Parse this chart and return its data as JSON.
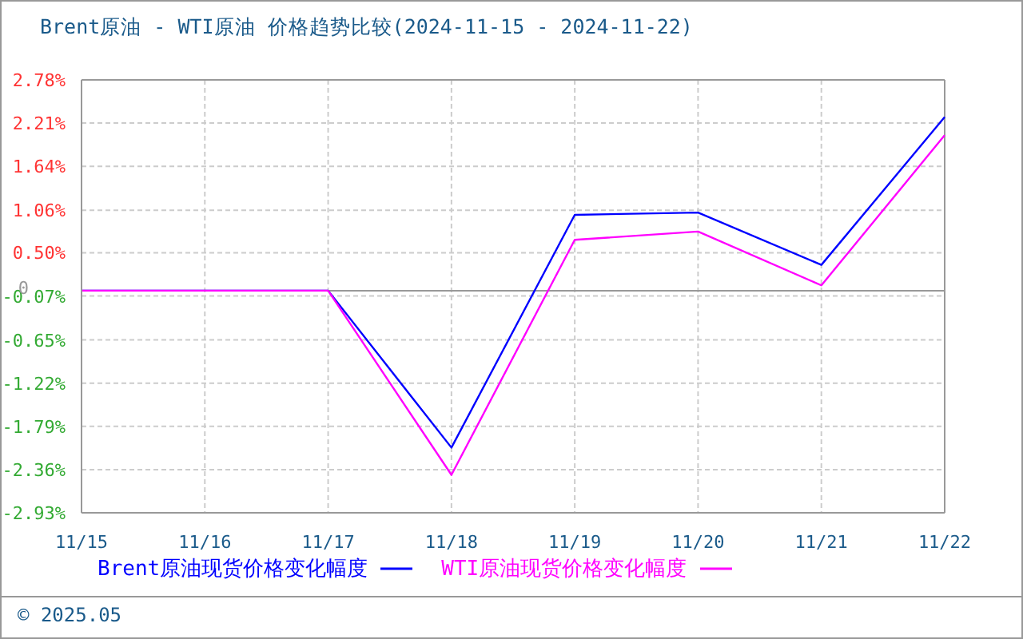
{
  "chart_data": {
    "type": "line",
    "title": "Brent原油 - WTI原油 价格趋势比较(2024-11-15 - 2024-11-22)",
    "categories": [
      "11/15",
      "11/16",
      "11/17",
      "11/18",
      "11/19",
      "11/20",
      "11/21",
      "11/22"
    ],
    "series": [
      {
        "name": "Brent原油现货价格变化幅度",
        "color": "#0000ff",
        "values": [
          0,
          0,
          0,
          -2.07,
          1.0,
          1.03,
          0.34,
          2.29
        ]
      },
      {
        "name": "WTI原油现货价格变化幅度",
        "color": "#ff00ff",
        "values": [
          0,
          0,
          0,
          -2.43,
          0.67,
          0.78,
          0.07,
          2.05
        ]
      }
    ],
    "ylim": [
      -2.93,
      2.78
    ],
    "yticks": [
      {
        "value": 2.78,
        "label": "2.78%"
      },
      {
        "value": 2.21,
        "label": "2.21%"
      },
      {
        "value": 1.64,
        "label": "1.64%"
      },
      {
        "value": 1.06,
        "label": "1.06%"
      },
      {
        "value": 0.5,
        "label": "0.50%"
      },
      {
        "value": -0.07,
        "label": "-0.07%"
      },
      {
        "value": -0.65,
        "label": "-0.65%"
      },
      {
        "value": -1.22,
        "label": "-1.22%"
      },
      {
        "value": -1.79,
        "label": "-1.79%"
      },
      {
        "value": -2.36,
        "label": "-2.36%"
      },
      {
        "value": -2.93,
        "label": "-2.93%"
      }
    ],
    "ref_lines": [
      {
        "axis": "y",
        "value": 0,
        "label": "0",
        "color": "#999999"
      }
    ],
    "grid": true,
    "legend": "bottom",
    "marker": "none",
    "line_style": "solid",
    "annotations": [
      "© 2025.05"
    ]
  }
}
